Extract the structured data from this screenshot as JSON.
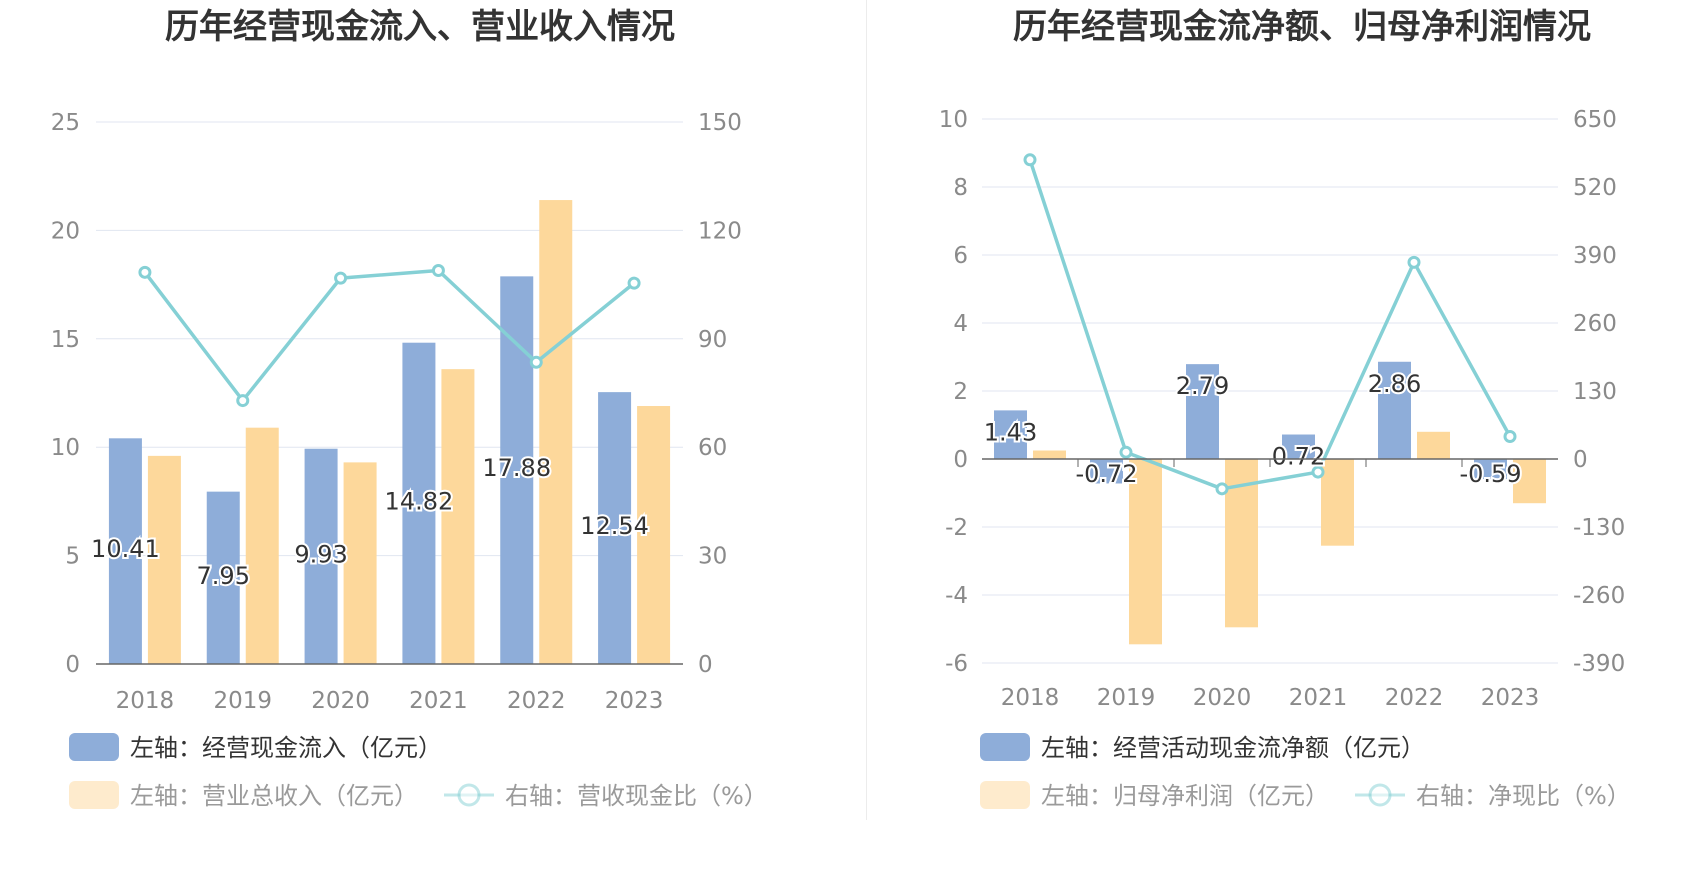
{
  "colors": {
    "bar_primary": "#8eadd9",
    "bar_secondary": "#fdd89b",
    "line": "#85d0d5",
    "grid": "#e1e6f0",
    "axis": "#666666"
  },
  "chart_data": [
    {
      "type": "bar",
      "title": "历年经营现金流入、营业收入情况",
      "categories": [
        "2018",
        "2019",
        "2020",
        "2021",
        "2022",
        "2023"
      ],
      "left_axis": {
        "ylim": [
          0,
          25
        ],
        "ticks": [
          "0",
          "5",
          "10",
          "15",
          "20",
          "25"
        ]
      },
      "right_axis": {
        "ylim": [
          0,
          150
        ],
        "ticks": [
          "0",
          "30",
          "60",
          "90",
          "120",
          "150"
        ]
      },
      "series": [
        {
          "name": "左轴：经营现金流入（亿元）",
          "kind": "bar",
          "axis": "left",
          "values": [
            10.41,
            7.95,
            9.93,
            14.82,
            17.88,
            12.54
          ],
          "labels": [
            "10.41",
            "7.95",
            "9.93",
            "14.82",
            "17.88",
            "12.54"
          ]
        },
        {
          "name": "左轴：营业总收入（亿元）",
          "kind": "bar",
          "axis": "left",
          "values": [
            9.6,
            10.9,
            9.3,
            13.6,
            21.4,
            11.9
          ]
        },
        {
          "name": "右轴：营收现金比（%）",
          "kind": "line",
          "axis": "right",
          "values": [
            108.4,
            72.9,
            106.8,
            108.9,
            83.5,
            105.4
          ]
        }
      ]
    },
    {
      "type": "bar",
      "title": "历年经营现金流净额、归母净利润情况",
      "categories": [
        "2018",
        "2019",
        "2020",
        "2021",
        "2022",
        "2023"
      ],
      "left_axis": {
        "ylim": [
          -6,
          10
        ],
        "ticks": [
          "-6",
          "-4",
          "-2",
          "0",
          "2",
          "4",
          "6",
          "8",
          "10"
        ]
      },
      "right_axis": {
        "ylim": [
          -390,
          650
        ],
        "ticks": [
          "-390",
          "-260",
          "-130",
          "0",
          "130",
          "260",
          "390",
          "520",
          "650"
        ]
      },
      "series": [
        {
          "name": "左轴：经营活动现金流净额（亿元）",
          "kind": "bar",
          "axis": "left",
          "values": [
            1.43,
            -0.72,
            2.79,
            0.72,
            2.86,
            -0.59
          ],
          "labels": [
            "1.43",
            "-0.72",
            "2.79",
            "0.72",
            "2.86",
            "-0.59"
          ]
        },
        {
          "name": "左轴：归母净利润（亿元）",
          "kind": "bar",
          "axis": "left",
          "values": [
            0.25,
            -5.45,
            -4.95,
            -2.55,
            0.8,
            -1.3
          ]
        },
        {
          "name": "右轴：净现比（%）",
          "kind": "line",
          "axis": "right",
          "values": [
            572,
            13,
            -57,
            -25,
            376,
            43
          ]
        }
      ]
    }
  ]
}
